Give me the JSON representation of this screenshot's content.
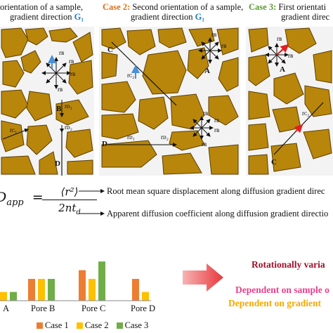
{
  "titles": {
    "case1": {
      "label": "",
      "text": "orientation of a sample,",
      "line2": "gradient direction",
      "g": "G₁"
    },
    "case2": {
      "label": "Case 2:",
      "text": "Second orientation of a sample,",
      "line2": "gradient direction",
      "g": "G₁"
    },
    "case3": {
      "label": "Case 3:",
      "text": "First orientati",
      "line2": "gradient direc",
      "g": ""
    }
  },
  "colors": {
    "grain": "#b8860b",
    "grain_stroke": "#5c3d00",
    "gradient_arrow": "#4a90d9",
    "red_marker": "#e02020",
    "case1": "#ed7d31",
    "case2": "#ffc000",
    "case3": "#70ad47",
    "rotational": "#a0102a",
    "dep_sample": "#e83e8c",
    "dep_gradient": "#f5a800"
  },
  "pore_labels": {
    "p1": [
      "B",
      "rᴅ₁",
      "rᴅ₂",
      "rᴄ₁",
      "D",
      "rʙ",
      "rʙ",
      "rʙ",
      "rʙ"
    ],
    "p2": [
      "C",
      "rᴄ₂",
      "A",
      "rʙ",
      "rʙ",
      "rᴅ₁",
      "rᴅ₂",
      "D",
      "rʙ",
      "rʙ",
      "rʙ",
      "rʙ"
    ],
    "p3": [
      "A",
      "rʙ",
      "rʙ",
      "rᴄ₂",
      "C"
    ]
  },
  "formula": {
    "lhs": "D",
    "sub": "app",
    "num": "⟨r²⟩",
    "den": "2nt",
    "den_sub": "d"
  },
  "descriptions": {
    "msd": "Root mean square displacement along diffusion gradient direc",
    "adc": "Apparent diffusion coefficient along diffusion gradient directio"
  },
  "chart_data": {
    "type": "bar",
    "categories": [
      "A",
      "Pore B",
      "Pore C",
      "Pore D"
    ],
    "series": [
      {
        "name": "Case 1",
        "values": [
          2,
          5,
          7,
          5
        ]
      },
      {
        "name": "Case 2",
        "values": [
          2,
          5,
          5,
          2
        ]
      },
      {
        "name": "Case 3",
        "values": [
          2,
          5,
          9,
          4
        ]
      }
    ]
  },
  "conclusions": {
    "rotational": "Rotationally varia",
    "dep_sample": "Dependent on sample o",
    "dep_gradient": "Dependent on gradient"
  }
}
